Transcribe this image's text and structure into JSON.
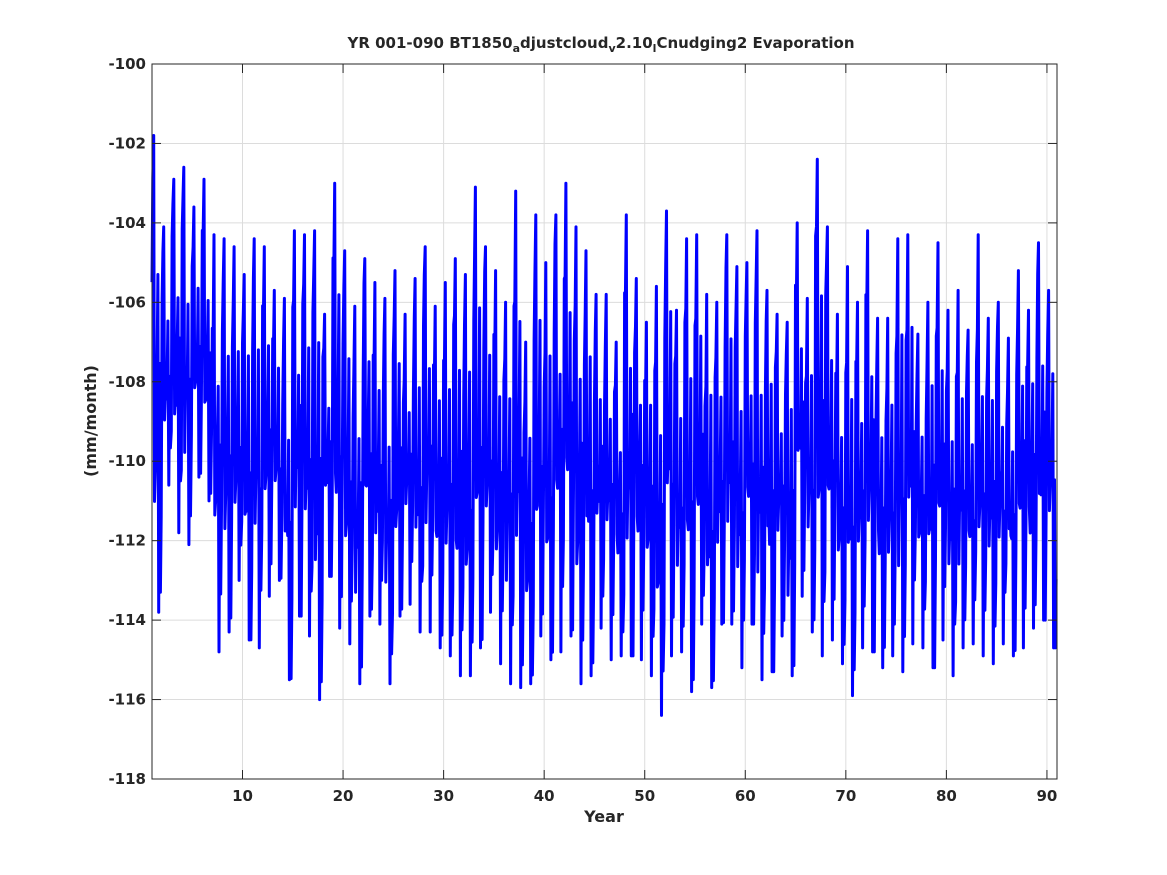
{
  "chart_data": {
    "type": "line",
    "title": {
      "parts": [
        {
          "text": "YR 001-090 BT1850",
          "style": "normal"
        },
        {
          "text": "a",
          "style": "sub"
        },
        {
          "text": "djustcloud",
          "style": "normal"
        },
        {
          "text": "v",
          "style": "sub"
        },
        {
          "text": "2.10",
          "style": "normal"
        },
        {
          "text": "l",
          "style": "sub"
        },
        {
          "text": "Cnudging2 Evaporation",
          "style": "normal"
        }
      ]
    },
    "xlabel": "Year",
    "ylabel": "(mm/month)",
    "xlim": [
      1,
      91
    ],
    "ylim": [
      -118,
      -100
    ],
    "xticks": [
      10,
      20,
      30,
      40,
      50,
      60,
      70,
      80,
      90
    ],
    "yticks": [
      -118,
      -116,
      -114,
      -112,
      -110,
      -108,
      -106,
      -104,
      -102,
      -100
    ],
    "grid": true,
    "series": [
      {
        "color": "#0000ff",
        "sampling": "monthly",
        "x_start": 1,
        "x_step": 0.08333,
        "yearly_max": [
          -101.8,
          -104.1,
          -102.9,
          -102.6,
          -103.6,
          -102.9,
          -104.3,
          -104.4,
          -104.6,
          -105.3,
          -104.4,
          -104.6,
          -105.7,
          -105.9,
          -104.2,
          -104.3,
          -104.2,
          -106.3,
          -103.0,
          -104.7,
          -106.1,
          -104.9,
          -105.5,
          -105.9,
          -105.2,
          -106.3,
          -105.4,
          -104.6,
          -106.1,
          -105.5,
          -104.9,
          -105.3,
          -103.1,
          -104.6,
          -105.2,
          -106.0,
          -103.2,
          -107.0,
          -103.8,
          -105.0,
          -103.8,
          -103.0,
          -104.1,
          -104.7,
          -105.8,
          -105.8,
          -107.0,
          -103.8,
          -105.4,
          -106.5,
          -105.6,
          -103.7,
          -106.2,
          -104.4,
          -104.3,
          -105.8,
          -106.0,
          -104.3,
          -105.1,
          -105.0,
          -104.2,
          -105.7,
          -106.3,
          -106.5,
          -104.0,
          -105.9,
          -102.4,
          -104.1,
          -106.3,
          -105.1,
          -106.0,
          -104.2,
          -106.4,
          -106.4,
          -104.4,
          -104.3,
          -106.8,
          -106.0,
          -104.5,
          -106.2,
          -105.7,
          -106.7,
          -104.3,
          -106.4,
          -106.0,
          -106.9,
          -105.2,
          -106.2,
          -104.5,
          -105.7
        ],
        "yearly_min": [
          -113.8,
          -110.6,
          -111.8,
          -112.1,
          -110.4,
          -111.0,
          -114.8,
          -114.3,
          -113.0,
          -114.5,
          -114.7,
          -113.4,
          -113.0,
          -115.5,
          -113.9,
          -114.4,
          -116.0,
          -112.9,
          -114.2,
          -114.6,
          -115.6,
          -113.9,
          -114.1,
          -115.6,
          -113.9,
          -113.6,
          -114.3,
          -114.3,
          -114.7,
          -114.9,
          -115.4,
          -115.4,
          -114.7,
          -113.8,
          -115.1,
          -115.6,
          -115.7,
          -115.6,
          -114.4,
          -115.0,
          -114.8,
          -114.4,
          -115.6,
          -115.4,
          -114.2,
          -115.0,
          -114.9,
          -114.9,
          -115.0,
          -115.4,
          -116.4,
          -114.9,
          -114.8,
          -115.8,
          -114.1,
          -115.7,
          -114.1,
          -114.1,
          -115.2,
          -114.1,
          -115.5,
          -115.3,
          -114.4,
          -115.4,
          -113.4,
          -114.3,
          -114.9,
          -114.5,
          -115.1,
          -115.9,
          -114.7,
          -114.8,
          -115.2,
          -114.9,
          -115.3,
          -114.6,
          -114.7,
          -115.2,
          -114.5,
          -115.4,
          -114.7,
          -114.6,
          -114.9,
          -115.1,
          -114.6,
          -114.9,
          -114.7,
          -114.2,
          -114.0,
          -114.7
        ]
      }
    ]
  }
}
